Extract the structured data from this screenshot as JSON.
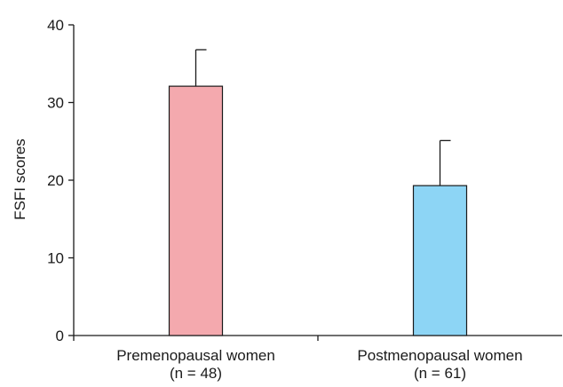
{
  "chart_data": {
    "type": "bar",
    "title": "",
    "xlabel": "",
    "ylabel": "FSFI scores",
    "ylim": [
      0,
      40
    ],
    "yticks": [
      0,
      10,
      20,
      30,
      40
    ],
    "categories": [
      {
        "line1": "Premenopausal women",
        "line2": "(n = 48)"
      },
      {
        "line1": "Postmenopausal women",
        "line2": "(n = 61)"
      }
    ],
    "values": [
      32.1,
      19.3
    ],
    "error_upper": [
      36.8,
      25.1
    ],
    "colors": [
      "#f4a9ae",
      "#8dd5f5"
    ],
    "grid": false,
    "legend": "none"
  }
}
